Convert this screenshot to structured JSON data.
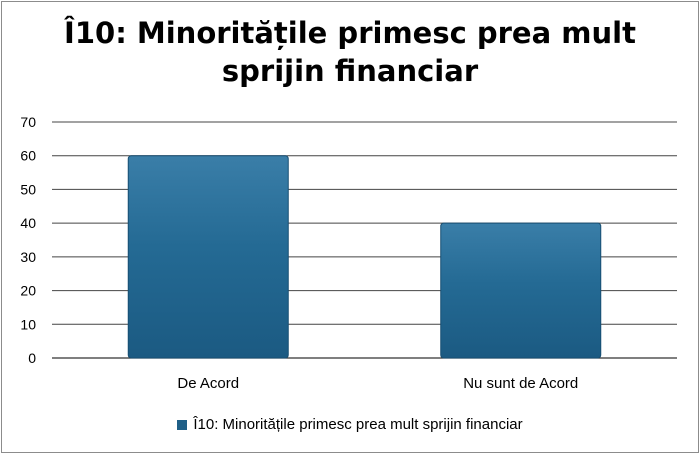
{
  "chart_data": {
    "type": "bar",
    "title": "Î10: Minoritățile primesc prea mult sprijin financiar",
    "categories": [
      "De Acord",
      "Nu sunt de Acord"
    ],
    "series": [
      {
        "name": "Î10: Minoritățile primesc prea mult sprijin financiar",
        "values": [
          60,
          40
        ],
        "color": "#1f5f87"
      }
    ],
    "ylim": [
      0,
      70
    ],
    "yticks": [
      0,
      10,
      20,
      30,
      40,
      50,
      60,
      70
    ],
    "grid": true,
    "legend_position": "bottom"
  }
}
